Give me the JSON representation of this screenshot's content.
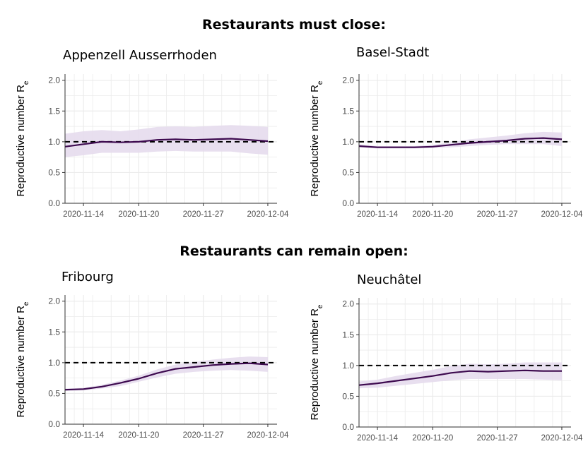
{
  "headings": {
    "close": "Restaurants must close:",
    "open": "Restaurants can remain open:"
  },
  "colors": {
    "line": "#3d0a4f",
    "band": "#e6dced",
    "grid": "#ebebeb",
    "threshold": "#000000"
  },
  "chart_data": [
    {
      "type": "line",
      "group": "Restaurants must close:",
      "title": "Appenzell Ausserrhoden",
      "ylabel_main": "Reproductive number R",
      "ylabel_sub": "e",
      "ylim": [
        0,
        2.1
      ],
      "yticks": [
        "0.0",
        "0.5",
        "1.0",
        "1.5",
        "2.0"
      ],
      "xticks": [
        "2020-11-14",
        "2020-11-20",
        "2020-11-27",
        "2020-12-04"
      ],
      "xlim": [
        "2020-11-12",
        "2020-12-05"
      ],
      "grid": true,
      "threshold": 1.0,
      "x": [
        "2020-11-12",
        "2020-11-14",
        "2020-11-16",
        "2020-11-18",
        "2020-11-20",
        "2020-11-22",
        "2020-11-24",
        "2020-11-26",
        "2020-11-28",
        "2020-11-30",
        "2020-12-02",
        "2020-12-04"
      ],
      "y": [
        0.92,
        0.96,
        1.0,
        0.99,
        1.0,
        1.03,
        1.04,
        1.03,
        1.04,
        1.05,
        1.03,
        1.01
      ],
      "lower": [
        0.75,
        0.78,
        0.82,
        0.82,
        0.82,
        0.84,
        0.85,
        0.84,
        0.84,
        0.84,
        0.81,
        0.79
      ],
      "upper": [
        1.13,
        1.17,
        1.19,
        1.17,
        1.2,
        1.24,
        1.25,
        1.24,
        1.26,
        1.27,
        1.26,
        1.24
      ]
    },
    {
      "type": "line",
      "group": "Restaurants must close:",
      "title": "Basel-Stadt",
      "ylabel_main": "Reproductive number R",
      "ylabel_sub": "e",
      "ylim": [
        0,
        2.1
      ],
      "yticks": [
        "0.0",
        "0.5",
        "1.0",
        "1.5",
        "2.0"
      ],
      "xticks": [
        "2020-11-14",
        "2020-11-20",
        "2020-11-27",
        "2020-12-04"
      ],
      "xlim": [
        "2020-11-12",
        "2020-12-05"
      ],
      "grid": true,
      "threshold": 1.0,
      "x": [
        "2020-11-12",
        "2020-11-14",
        "2020-11-16",
        "2020-11-18",
        "2020-11-20",
        "2020-11-22",
        "2020-11-24",
        "2020-11-26",
        "2020-11-28",
        "2020-11-30",
        "2020-12-02",
        "2020-12-04"
      ],
      "y": [
        0.93,
        0.91,
        0.91,
        0.91,
        0.92,
        0.95,
        0.98,
        1.0,
        1.02,
        1.05,
        1.06,
        1.04
      ],
      "lower": [
        0.91,
        0.89,
        0.89,
        0.89,
        0.9,
        0.91,
        0.93,
        0.95,
        0.96,
        0.96,
        0.96,
        0.93
      ],
      "upper": [
        0.96,
        0.93,
        0.93,
        0.93,
        0.95,
        0.99,
        1.04,
        1.07,
        1.1,
        1.14,
        1.16,
        1.15
      ]
    },
    {
      "type": "line",
      "group": "Restaurants can remain open:",
      "title": "Fribourg",
      "ylabel_main": "Reproductive number R",
      "ylabel_sub": "e",
      "ylim": [
        0,
        2.1
      ],
      "yticks": [
        "0.0",
        "0.5",
        "1.0",
        "1.5",
        "2.0"
      ],
      "xticks": [
        "2020-11-14",
        "2020-11-20",
        "2020-11-27",
        "2020-12-04"
      ],
      "xlim": [
        "2020-11-12",
        "2020-12-05"
      ],
      "grid": true,
      "threshold": 1.0,
      "x": [
        "2020-11-12",
        "2020-11-14",
        "2020-11-16",
        "2020-11-18",
        "2020-11-20",
        "2020-11-22",
        "2020-11-24",
        "2020-11-26",
        "2020-11-28",
        "2020-11-30",
        "2020-12-02",
        "2020-12-04"
      ],
      "y": [
        0.56,
        0.57,
        0.61,
        0.67,
        0.74,
        0.83,
        0.9,
        0.93,
        0.96,
        0.98,
        0.99,
        0.97
      ],
      "lower": [
        0.54,
        0.55,
        0.58,
        0.62,
        0.69,
        0.76,
        0.82,
        0.85,
        0.87,
        0.88,
        0.87,
        0.85
      ],
      "upper": [
        0.58,
        0.59,
        0.64,
        0.71,
        0.79,
        0.89,
        0.97,
        1.01,
        1.05,
        1.08,
        1.1,
        1.09
      ]
    },
    {
      "type": "line",
      "group": "Restaurants can remain open:",
      "title": "Neuchâtel",
      "ylabel_main": "Reproductive number R",
      "ylabel_sub": "e",
      "ylim": [
        0,
        2.1
      ],
      "yticks": [
        "0.0",
        "0.5",
        "1.0",
        "1.5",
        "2.0"
      ],
      "xticks": [
        "2020-11-14",
        "2020-11-20",
        "2020-11-27",
        "2020-12-04"
      ],
      "xlim": [
        "2020-11-12",
        "2020-12-05"
      ],
      "grid": true,
      "threshold": 1.0,
      "x": [
        "2020-11-12",
        "2020-11-14",
        "2020-11-16",
        "2020-11-18",
        "2020-11-20",
        "2020-11-22",
        "2020-11-24",
        "2020-11-26",
        "2020-11-28",
        "2020-11-30",
        "2020-12-02",
        "2020-12-04"
      ],
      "y": [
        0.68,
        0.71,
        0.75,
        0.79,
        0.83,
        0.88,
        0.91,
        0.9,
        0.91,
        0.92,
        0.91,
        0.91
      ],
      "lower": [
        0.63,
        0.64,
        0.67,
        0.7,
        0.73,
        0.76,
        0.78,
        0.78,
        0.78,
        0.78,
        0.77,
        0.76
      ],
      "upper": [
        0.74,
        0.77,
        0.83,
        0.88,
        0.93,
        0.99,
        1.03,
        1.02,
        1.03,
        1.05,
        1.05,
        1.05
      ]
    }
  ]
}
